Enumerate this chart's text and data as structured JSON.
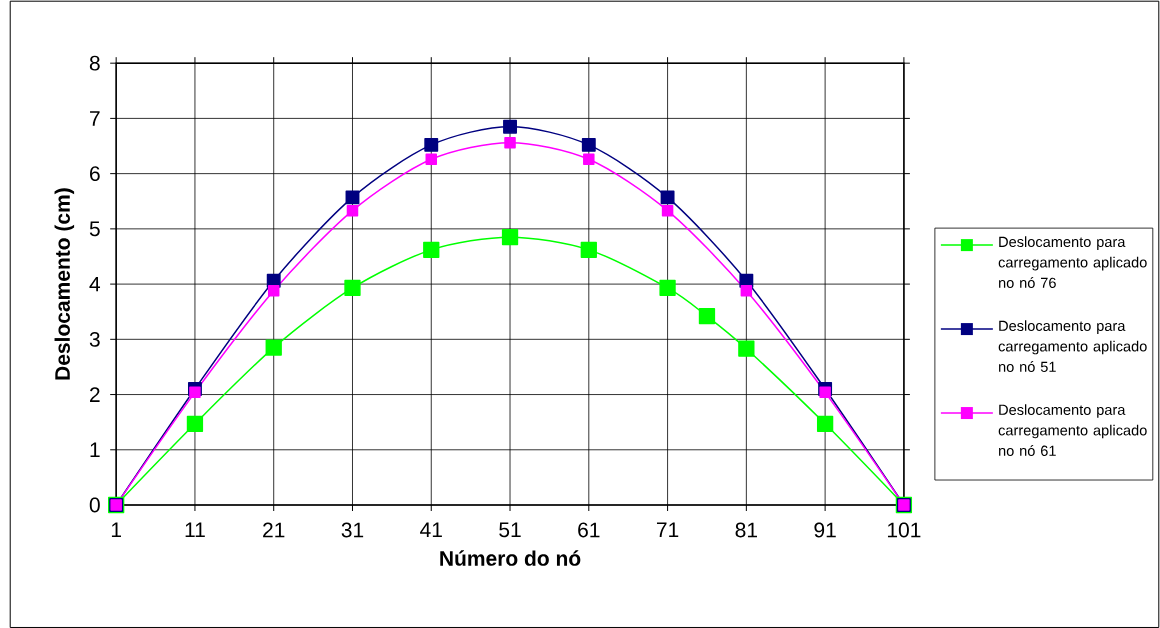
{
  "chart_data": {
    "type": "line",
    "xlabel": "Número do nó",
    "ylabel": "Deslocamento (cm)",
    "xlim": [
      1,
      101
    ],
    "xticks": [
      1,
      11,
      21,
      31,
      41,
      51,
      61,
      71,
      81,
      91,
      101
    ],
    "ylim": [
      0,
      8
    ],
    "yticks": [
      0,
      1,
      2,
      3,
      4,
      5,
      6,
      7,
      8
    ],
    "grid": true,
    "legend": "right",
    "marker": "square",
    "line_style": "solid",
    "series": [
      {
        "name": "Deslocamento para carregamento aplicado no nó 76",
        "color": "#00ff00",
        "x": [
          1,
          11,
          21,
          31,
          41,
          51,
          61,
          71,
          76,
          81,
          91,
          101
        ],
        "values": [
          0,
          1.47,
          2.85,
          3.93,
          4.62,
          4.85,
          4.62,
          3.93,
          3.42,
          2.83,
          1.47,
          0
        ]
      },
      {
        "name": "Deslocamento para carregamento aplicado no nó 51",
        "color": "#000080",
        "x": [
          1,
          11,
          21,
          31,
          41,
          51,
          61,
          71,
          81,
          91,
          101
        ],
        "values": [
          0,
          2.1,
          4.06,
          5.57,
          6.52,
          6.85,
          6.52,
          5.57,
          4.06,
          2.1,
          0
        ]
      },
      {
        "name": "Deslocamento para carregamento aplicado no nó 61",
        "color": "#ff00ff",
        "x": [
          1,
          11,
          21,
          31,
          41,
          51,
          61,
          71,
          81,
          91,
          101
        ],
        "values": [
          0,
          2.04,
          3.88,
          5.33,
          6.26,
          6.56,
          6.26,
          5.33,
          3.88,
          2.04,
          0
        ]
      }
    ]
  }
}
